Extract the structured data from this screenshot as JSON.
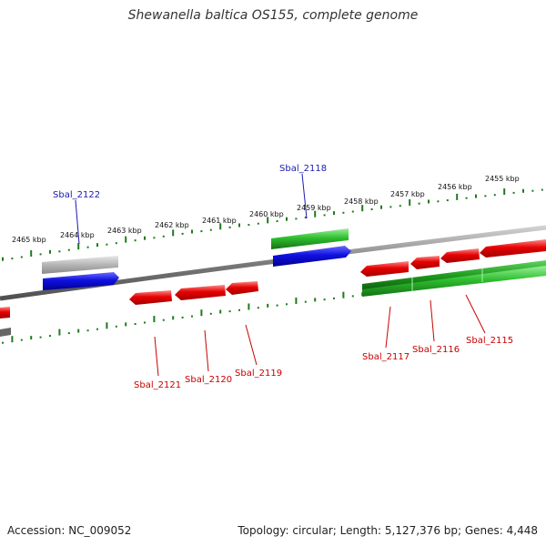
{
  "title": "Shewanella baltica OS155, complete genome",
  "footer": {
    "accession": "Accession: NC_009052",
    "summary": "Topology: circular; Length: 5,127,376 bp; Genes: 4,448"
  },
  "colors": {
    "forward_label": "#1a1ab0",
    "reverse_label": "#c80000",
    "red_gene": "#e60000",
    "green_gene": "#2fbf2f",
    "blue_gene": "#1010e0",
    "gray_gene": "#b5b5b5",
    "tick_green": "#1f7a1f",
    "backbone": "#808080"
  },
  "ticks": [
    {
      "label": "2465 kbp"
    },
    {
      "label": "2464 kbp"
    },
    {
      "label": "2463 kbp"
    },
    {
      "label": "2462 kbp"
    },
    {
      "label": "2461 kbp"
    },
    {
      "label": "2460 kbp"
    },
    {
      "label": "2459 kbp"
    },
    {
      "label": "2458 kbp"
    },
    {
      "label": "2457 kbp"
    },
    {
      "label": "2456 kbp"
    },
    {
      "label": "2455 kbp"
    }
  ],
  "labels": [
    {
      "text": "Sbal_2122",
      "strand": "forward"
    },
    {
      "text": "Sbal_2118",
      "strand": "forward"
    },
    {
      "text": "Sbal_2121",
      "strand": "reverse"
    },
    {
      "text": "Sbal_2120",
      "strand": "reverse"
    },
    {
      "text": "Sbal_2119",
      "strand": "reverse"
    },
    {
      "text": "Sbal_2117",
      "strand": "reverse"
    },
    {
      "text": "Sbal_2116",
      "strand": "reverse"
    },
    {
      "text": "Sbal_2115",
      "strand": "reverse"
    }
  ]
}
